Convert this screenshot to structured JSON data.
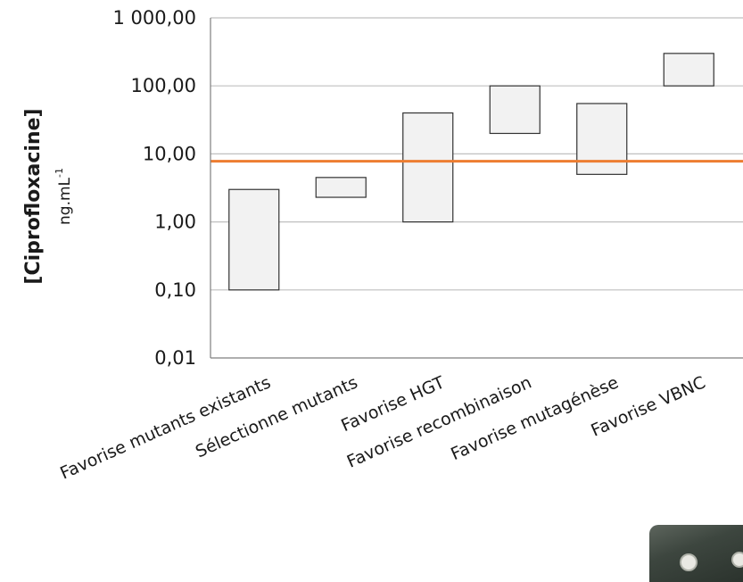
{
  "chart_data": {
    "type": "floating-bar",
    "title": "",
    "ylabel": "[Ciprofloxacine]",
    "yunit_base": "ng.mL",
    "yunit_exp": "-1",
    "yscale": "log",
    "ylim": [
      0.01,
      1000
    ],
    "yticks": [
      {
        "value": 0.01,
        "label": "0,01"
      },
      {
        "value": 0.1,
        "label": "0,10"
      },
      {
        "value": 1,
        "label": "1,00"
      },
      {
        "value": 10,
        "label": "10,00"
      },
      {
        "value": 100,
        "label": "100,00"
      },
      {
        "value": 1000,
        "label": "1 000,00"
      }
    ],
    "grid": true,
    "categories": [
      "Favorise mutants existants",
      "Sélectionne mutants",
      "Favorise HGT",
      "Favorise recombinaison",
      "Favorise mutagénèse",
      "Favorise VBNC"
    ],
    "ranges": [
      {
        "low": 0.1,
        "high": 3
      },
      {
        "low": 2.3,
        "high": 4.5
      },
      {
        "low": 1,
        "high": 40
      },
      {
        "low": 20,
        "high": 100
      },
      {
        "low": 5,
        "high": 55
      },
      {
        "low": 100,
        "high": 300
      }
    ],
    "reference_line": {
      "value": 7.8,
      "color": "#ed7d31"
    },
    "bar_fill": "#f2f2f2",
    "bar_stroke": "#333333",
    "grid_color": "#bfbfbf"
  }
}
